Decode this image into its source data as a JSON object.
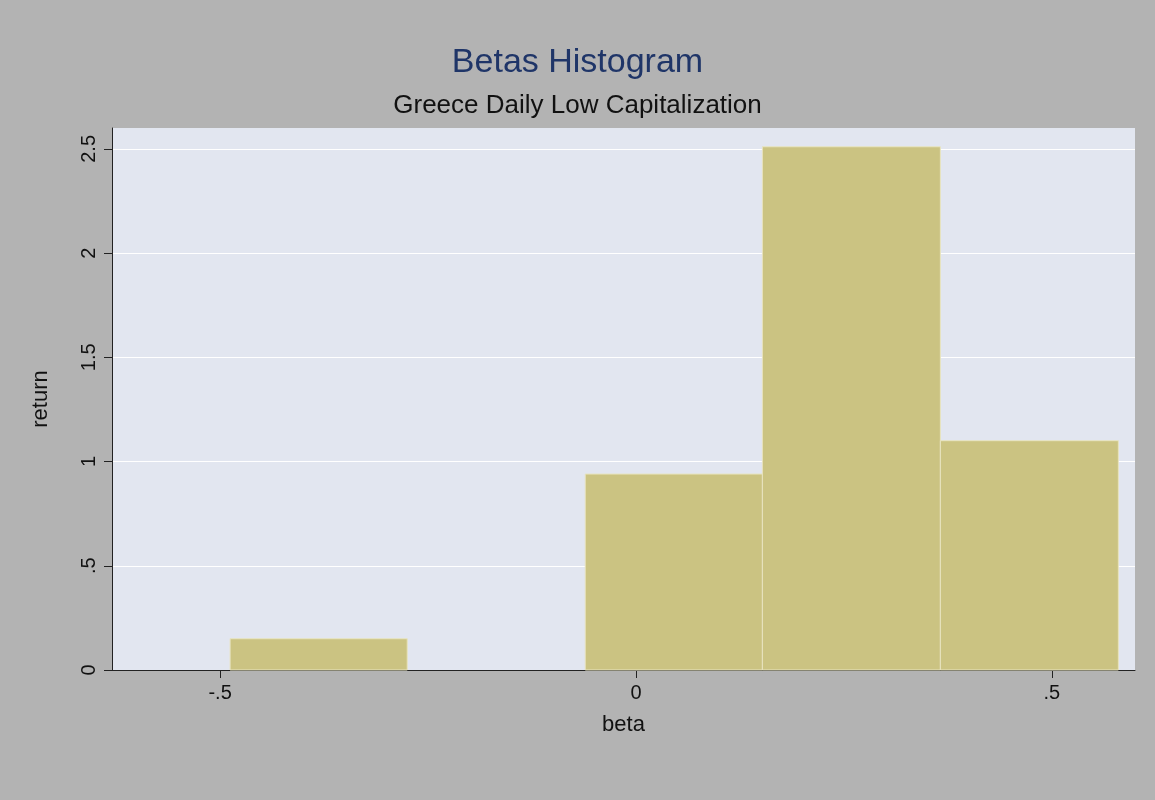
{
  "chart_data": {
    "type": "histogram",
    "title": "Betas Histogram",
    "subtitle": "Greece Daily Low Capitalization",
    "xlabel": "beta",
    "ylabel": "return",
    "bins": [
      -0.488,
      -0.275,
      -0.061,
      0.152,
      0.366,
      0.58
    ],
    "values": [
      0.15,
      0,
      0.94,
      2.51,
      1.1
    ],
    "color": "#cbc382",
    "xlim": [
      -0.63,
      0.6
    ],
    "xticks": [
      {
        "value": -0.5,
        "label": "-.5"
      },
      0,
      {
        "value": 0.5,
        "label": ".5"
      }
    ],
    "ylim": [
      0,
      2.6
    ],
    "yticks": [
      0,
      {
        "value": 0.5,
        "label": ".5"
      },
      1,
      {
        "value": 1.5,
        "label": "1.5"
      },
      2,
      {
        "value": 2.5,
        "label": "2.5"
      }
    ],
    "grid": "y"
  }
}
